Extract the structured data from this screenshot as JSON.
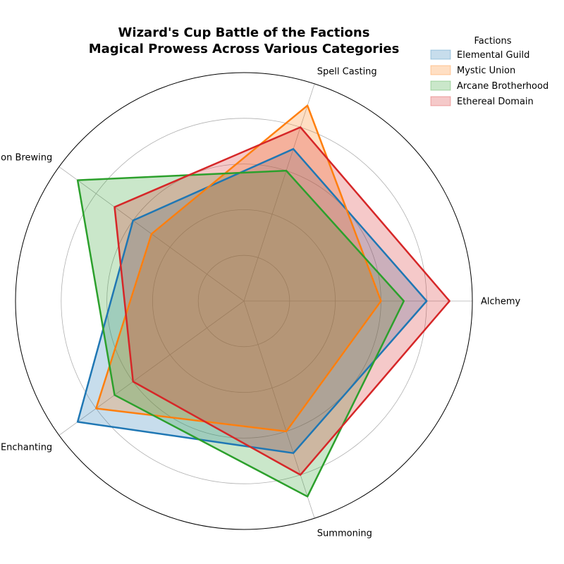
{
  "chart_data": {
    "type": "radar",
    "title": "Wizard's Cup Battle of the Factions",
    "subtitle": "Magical Prowess Across Various Categories",
    "categories": [
      "Alchemy",
      "Spell Casting",
      "Potion Brewing",
      "Enchanting",
      "Summoning"
    ],
    "rlim": [
      0,
      100
    ],
    "grid_rings": [
      20,
      40,
      60,
      80
    ],
    "grid": true,
    "legend_title": "Factions",
    "legend_position": "top-right",
    "series": [
      {
        "name": "Elemental Guild",
        "values": [
          80,
          70,
          60,
          90,
          70
        ],
        "color": "#1f77b4"
      },
      {
        "name": "Mystic Union",
        "values": [
          60,
          90,
          50,
          80,
          60
        ],
        "color": "#ff7f0e"
      },
      {
        "name": "Arcane Brotherhood",
        "values": [
          70,
          60,
          90,
          70,
          90
        ],
        "color": "#2ca02c"
      },
      {
        "name": "Ethereal Domain",
        "values": [
          90,
          80,
          70,
          60,
          80
        ],
        "color": "#d62728"
      }
    ]
  }
}
